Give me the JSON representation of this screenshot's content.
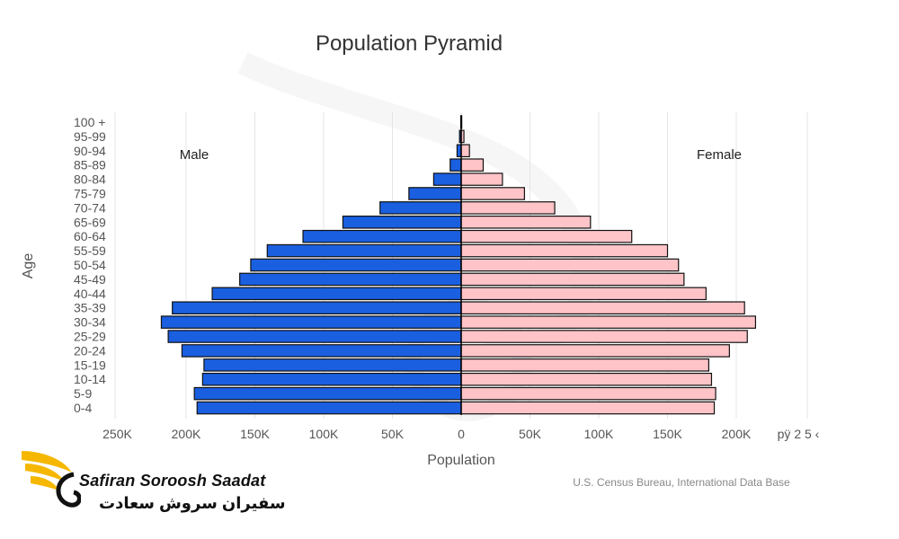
{
  "chart_data": {
    "type": "bar",
    "orientation": "horizontal-diverging",
    "title": "Population Pyramid",
    "xlabel": "Population",
    "ylabel": "Age",
    "xlim": [
      -250000,
      250000
    ],
    "x_tick_labels": [
      "250K",
      "200K",
      "150K",
      "100K",
      "50K",
      "0",
      "50K",
      "100K",
      "150K",
      "200K"
    ],
    "trailing_tick_text": "pÿ 2 5 ‹",
    "grid": true,
    "legend_placement": "inside-top",
    "categories": [
      "0-4",
      "5-9",
      "10-14",
      "15-19",
      "20-24",
      "25-29",
      "30-34",
      "35-39",
      "40-44",
      "45-49",
      "50-54",
      "55-59",
      "60-64",
      "65-69",
      "70-74",
      "75-79",
      "80-84",
      "85-89",
      "90-94",
      "95-99",
      "100 +"
    ],
    "series": [
      {
        "name": "Male",
        "color": "#1a5fe0",
        "values": [
          192000,
          194000,
          188000,
          187000,
          203000,
          213000,
          218000,
          210000,
          181000,
          161000,
          153000,
          141000,
          115000,
          86000,
          59000,
          38000,
          20000,
          8000,
          3000,
          1200,
          300
        ]
      },
      {
        "name": "Female",
        "color": "#ffc4c8",
        "values": [
          184000,
          185000,
          182000,
          180000,
          195000,
          208000,
          214000,
          206000,
          178000,
          162000,
          158000,
          150000,
          124000,
          94000,
          68000,
          46000,
          30000,
          16000,
          6000,
          2000,
          400
        ]
      }
    ],
    "source": "U.S. Census Bureau, International Data Base"
  },
  "logo": {
    "name_en": "Safiran Soroosh Saadat",
    "name_fa": "سفیران سروش سعادت",
    "accent_color": "#f5b700"
  }
}
